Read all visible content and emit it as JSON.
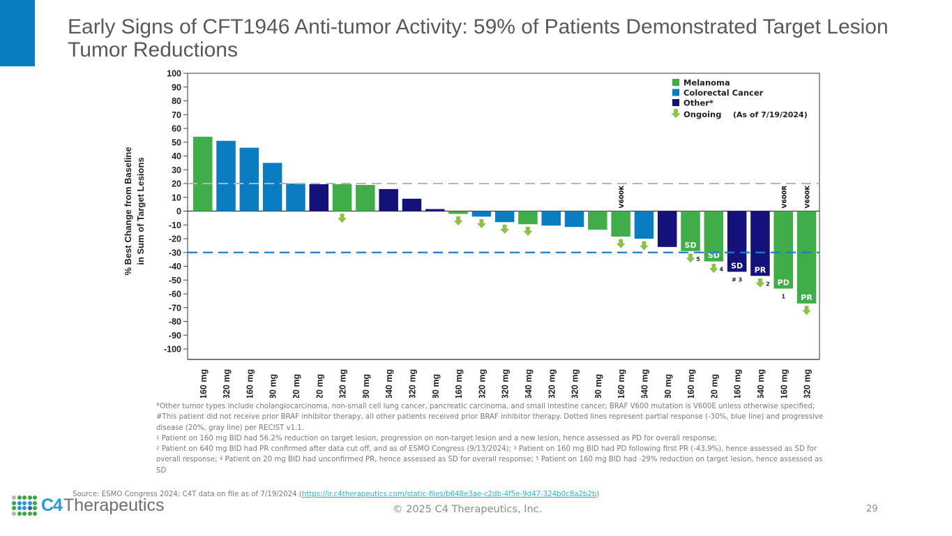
{
  "slide": {
    "title": "Early Signs of CFT1946 Anti-tumor Activity: 59% of Patients Demonstrated Target Lesion Tumor Reductions",
    "accent_color": "#0a7dc2",
    "page_number": "29",
    "copyright": "© 2025 C4 Therapeutics, Inc.",
    "logo": {
      "mark": "C4",
      "name": "Therapeutics"
    },
    "source": {
      "prefix": "Source: ESMO Congress 2024; C4T data on file as of 7/19/2024 (",
      "link": "https://ir.c4therapeutics.com/static-files/b648e3ae-c2db-4f5e-9d47-324b0c8a2b2b",
      "suffix": ")"
    },
    "footnotes": [
      "*Other tumor types include cholangiocarcinoma, non-small cell lung cancer, pancreatic carcinoma, and small intestine cancer; BRAF V600 mutation is V600E unless otherwise specified; #This patient did not receive prior BRAF inhibitor therapy, all other patients received prior BRAF inhibitor therapy. Dotted lines represent partial response (-30%, blue line) and progressive disease (20%, gray line) per RECIST v1.1.",
      "Patient on 160 mg BID had 56.2% reduction on target lesion, progression on non-target lesion and a new lesion, hence assessed as PD for overall response;",
      "Patient on 640 mg BID had PR confirmed after data cut off, and as of ESMO Congress (9/13/2024);",
      "Patient on 160 mg BID had PD following first PR (-43.9%), hence assessed as SD for overall response;",
      "Patient on 20 mg BID had unconfirmed PR, hence assessed as SD for overall response;",
      "Patient on 160 mg BID had -29% reduction on target lesion, hence assessed as SD"
    ]
  },
  "chart_data": {
    "type": "bar",
    "title": "",
    "xlabel": "",
    "ylabel": "% Best Change from Baseline in Sum of Target Lesions",
    "ylabel_lines": [
      "% Best Change from Baseline",
      "in Sum of Target Lesions"
    ],
    "ylim": [
      -100,
      100
    ],
    "yticks": [
      100,
      90,
      80,
      70,
      60,
      50,
      40,
      30,
      20,
      10,
      0,
      -10,
      -20,
      -30,
      -40,
      -50,
      -60,
      -70,
      -80,
      -90,
      -100
    ],
    "grid": false,
    "reference_lines": [
      {
        "value": 20,
        "label": "progressive disease (20%)",
        "color": "#b5b5b5",
        "style": "dashed"
      },
      {
        "value": -30,
        "label": "partial response (-30%)",
        "color": "#1a7fc6",
        "style": "dashed"
      }
    ],
    "legend": {
      "placement": "top-right",
      "entries": [
        {
          "label": "Melanoma",
          "color": "#3fae49"
        },
        {
          "label": "Colorectal Cancer",
          "color": "#0a7dc2"
        },
        {
          "label": "Other*",
          "color": "#14117a"
        },
        {
          "label": "Ongoing",
          "symbol": "down-arrow",
          "color": "#8cc63f"
        }
      ],
      "note": "(As of 7/19/2024)"
    },
    "colors": {
      "Melanoma": "#3fae49",
      "Colorectal Cancer": "#0a7dc2",
      "Other": "#14117a",
      "ongoing": "#8cc63f"
    },
    "categories": [
      "160 mg",
      "320 mg",
      "160 mg",
      "80 mg",
      "20 mg",
      "20 mg",
      "320 mg",
      "80 mg",
      "640 mg",
      "320 mg",
      "80 mg",
      "160 mg",
      "320 mg",
      "320 mg",
      "640 mg",
      "320 mg",
      "320 mg",
      "80 mg",
      "160 mg",
      "640 mg",
      "80 mg",
      "160 mg",
      "20 mg",
      "160 mg",
      "640 mg",
      "160 mg",
      "320 mg"
    ],
    "values": [
      54,
      51,
      46,
      35,
      20,
      19.5,
      19.5,
      19,
      16,
      9,
      1.5,
      -2,
      -4,
      -8,
      -9.5,
      -10.5,
      -11.5,
      -13.5,
      -18.5,
      -20,
      -26,
      -29,
      -36.5,
      -44,
      -47,
      -56.2,
      -67
    ],
    "tumor_type": [
      "Melanoma",
      "Colorectal Cancer",
      "Colorectal Cancer",
      "Colorectal Cancer",
      "Colorectal Cancer",
      "Other",
      "Melanoma",
      "Melanoma",
      "Other",
      "Other",
      "Other",
      "Melanoma",
      "Colorectal Cancer",
      "Colorectal Cancer",
      "Melanoma",
      "Colorectal Cancer",
      "Colorectal Cancer",
      "Melanoma",
      "Melanoma",
      "Colorectal Cancer",
      "Other",
      "Melanoma",
      "Melanoma",
      "Other",
      "Other",
      "Melanoma",
      "Melanoma"
    ],
    "ongoing": [
      false,
      false,
      false,
      false,
      false,
      false,
      true,
      false,
      false,
      false,
      false,
      true,
      true,
      true,
      true,
      false,
      false,
      false,
      true,
      true,
      false,
      true,
      true,
      false,
      true,
      false,
      true
    ],
    "response_labels": [
      "",
      "",
      "",
      "",
      "",
      "",
      "",
      "",
      "",
      "",
      "",
      "",
      "",
      "",
      "",
      "",
      "",
      "",
      "",
      "",
      "",
      "SD",
      "SD",
      "SD",
      "PR",
      "PD",
      "PR"
    ],
    "footnote_marks": [
      "",
      "",
      "",
      "",
      "",
      "",
      "",
      "",
      "",
      "",
      "",
      "",
      "",
      "",
      "",
      "",
      "",
      "",
      "",
      "",
      "",
      "5",
      "4",
      "# 3",
      "2",
      "1",
      ""
    ],
    "mutation_labels": [
      "",
      "",
      "",
      "",
      "",
      "",
      "",
      "",
      "",
      "",
      "",
      "",
      "",
      "",
      "",
      "",
      "",
      "",
      "V600K",
      "",
      "",
      "",
      "",
      "",
      "",
      "V600R",
      "V600K"
    ]
  }
}
